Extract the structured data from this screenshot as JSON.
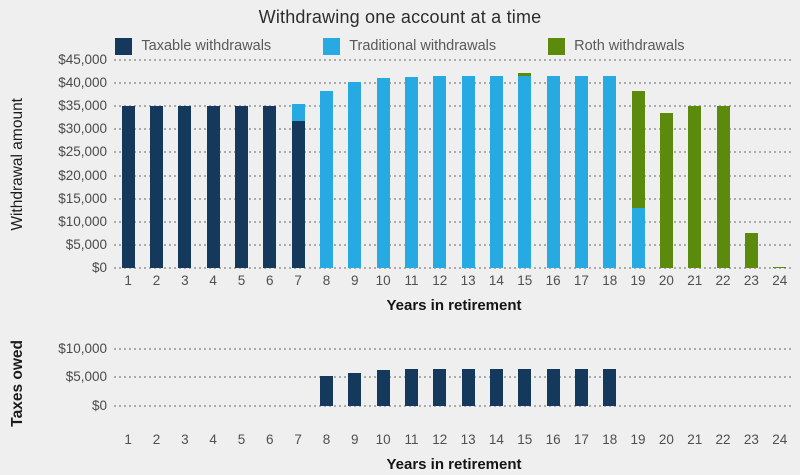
{
  "title": "Withdrawing one account at a time",
  "colors": {
    "background": "#efefef",
    "taxable": "#14395c",
    "traditional": "#27a9e1",
    "roth": "#5b8a0d"
  },
  "legend": [
    {
      "key": "taxable",
      "label": "Taxable withdrawals",
      "color": "#14395c"
    },
    {
      "key": "traditional",
      "label": "Traditional withdrawals",
      "color": "#27a9e1"
    },
    {
      "key": "roth",
      "label": "Roth withdrawals",
      "color": "#5b8a0d"
    }
  ],
  "chart_data": [
    {
      "type": "bar",
      "stacked": true,
      "ylabel": "Withdrawal amount",
      "xlabel": "Years in retirement",
      "ylim": [
        0,
        45000
      ],
      "ymax": 45000,
      "grid": "dotted horizontal",
      "legend_position": "top",
      "categories": [
        1,
        2,
        3,
        4,
        5,
        6,
        7,
        8,
        9,
        10,
        11,
        12,
        13,
        14,
        15,
        16,
        17,
        18,
        19,
        20,
        21,
        22,
        23,
        24
      ],
      "gridlines": [
        {
          "value": 45000,
          "label": "$45,000"
        },
        {
          "value": 40000,
          "label": "$40,000"
        },
        {
          "value": 35000,
          "label": "$35,000"
        },
        {
          "value": 30000,
          "label": "$30,000"
        },
        {
          "value": 25000,
          "label": "$25,000"
        },
        {
          "value": 20000,
          "label": "$20,000"
        },
        {
          "value": 15000,
          "label": "$15,000"
        },
        {
          "value": 10000,
          "label": "$10,000"
        },
        {
          "value": 5000,
          "label": "$5,000"
        },
        {
          "value": 0,
          "label": "$0"
        }
      ],
      "series": [
        {
          "key": "taxable",
          "name": "Taxable withdrawals",
          "color": "#14395c",
          "values": [
            35000,
            35000,
            35000,
            35000,
            35000,
            35000,
            31700,
            0,
            0,
            0,
            0,
            0,
            0,
            0,
            0,
            0,
            0,
            0,
            0,
            0,
            0,
            0,
            0,
            0
          ]
        },
        {
          "key": "traditional",
          "name": "Traditional withdrawals",
          "color": "#27a9e1",
          "values": [
            0,
            0,
            0,
            0,
            0,
            0,
            3800,
            38300,
            40300,
            41100,
            41400,
            41600,
            41600,
            41600,
            41500,
            41600,
            41600,
            41600,
            12900,
            0,
            0,
            0,
            0,
            0
          ]
        },
        {
          "key": "roth",
          "name": "Roth withdrawals",
          "color": "#5b8a0d",
          "values": [
            0,
            0,
            0,
            0,
            0,
            0,
            0,
            0,
            0,
            0,
            0,
            0,
            0,
            0,
            700,
            0,
            0,
            0,
            25500,
            33600,
            35000,
            35000,
            7500,
            300
          ]
        }
      ]
    },
    {
      "type": "bar",
      "stacked": false,
      "ylabel": "Taxes owed",
      "xlabel": "Years in retirement",
      "ylim": [
        0,
        11500
      ],
      "ymax": 11500,
      "grid": "dotted horizontal",
      "categories": [
        1,
        2,
        3,
        4,
        5,
        6,
        7,
        8,
        9,
        10,
        11,
        12,
        13,
        14,
        15,
        16,
        17,
        18,
        19,
        20,
        21,
        22,
        23,
        24
      ],
      "gridlines": [
        {
          "value": 10000,
          "label": "$10,000"
        },
        {
          "value": 5000,
          "label": "$5,000"
        },
        {
          "value": 0,
          "label": "$0"
        }
      ],
      "series": [
        {
          "key": "taxable",
          "name": "Taxes owed",
          "color": "#14395c",
          "values": [
            0,
            0,
            0,
            0,
            0,
            0,
            0,
            5200,
            5800,
            6200,
            6400,
            6400,
            6400,
            6400,
            6400,
            6400,
            6400,
            6400,
            0,
            0,
            0,
            0,
            0,
            0
          ]
        }
      ]
    }
  ]
}
